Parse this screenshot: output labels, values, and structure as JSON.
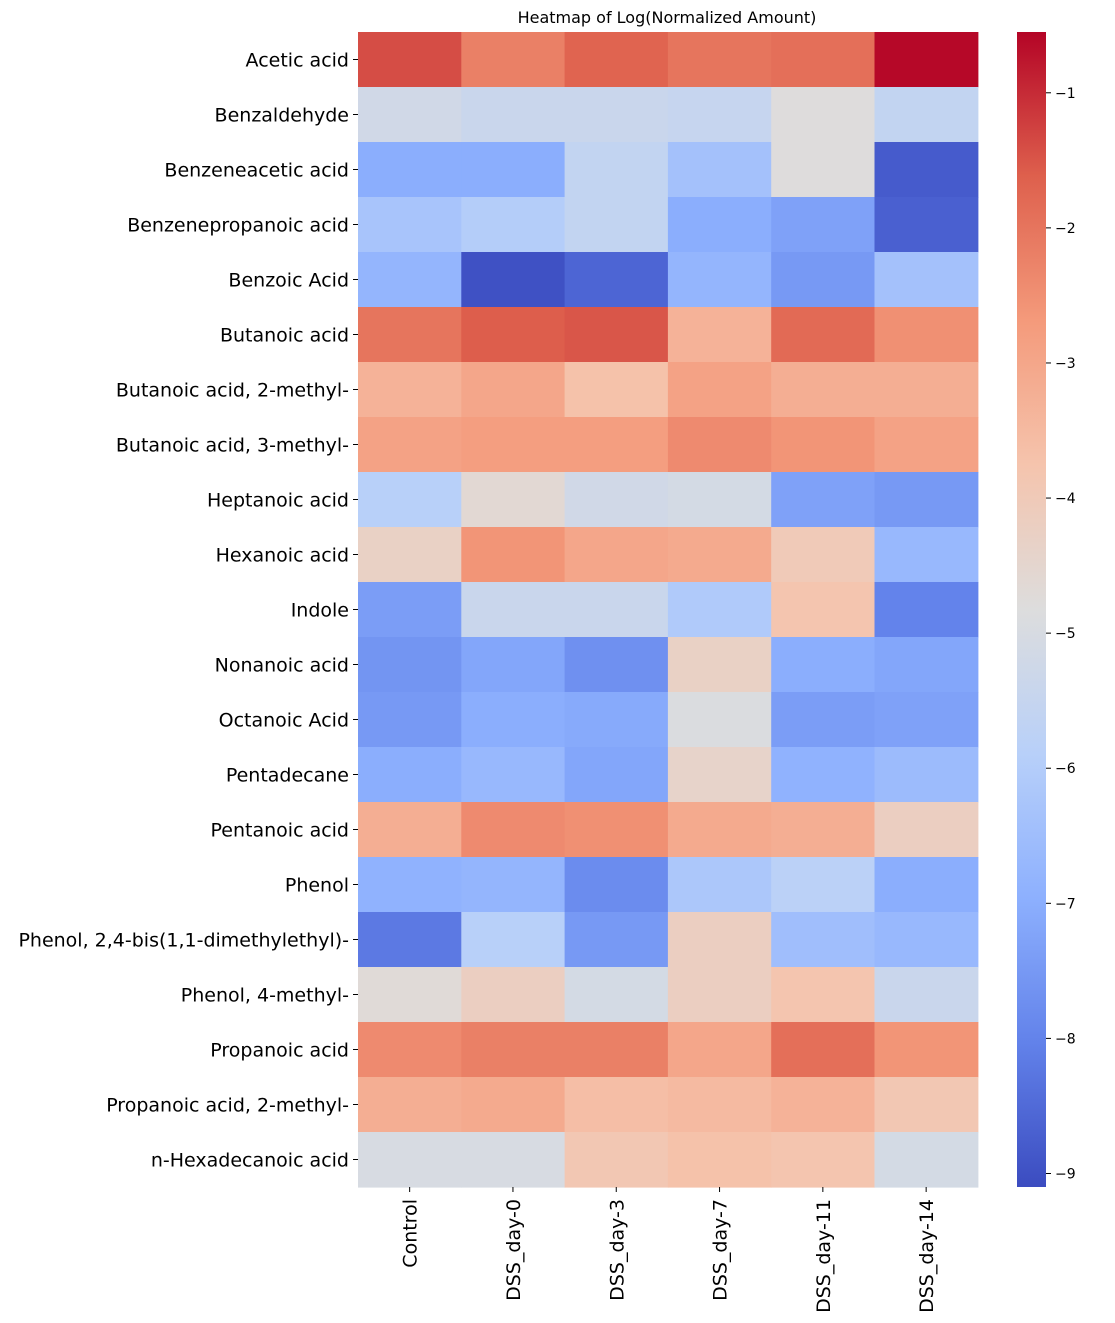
{
  "chart_data": {
    "type": "heatmap",
    "title": "Heatmap of Log(Normalized Amount)",
    "xlabel": "",
    "ylabel": "",
    "colormap": "coolwarm",
    "colormap_stops": [
      "#3b4cc0",
      "#b40426"
    ],
    "vmin": -9.1,
    "vmax": -0.55,
    "colorbar_ticks": [
      -1,
      -2,
      -3,
      -4,
      -5,
      -6,
      -7,
      -8,
      -9
    ],
    "colorbar_tick_labels": [
      "−1",
      "−2",
      "−3",
      "−4",
      "−5",
      "−6",
      "−7",
      "−8",
      "−9"
    ],
    "columns": [
      "Control",
      "DSS_day-0",
      "DSS_day-3",
      "DSS_day-7",
      "DSS_day-11",
      "DSS_day-14"
    ],
    "rows": [
      "Acetic acid",
      "Benzaldehyde",
      "Benzeneacetic acid",
      "Benzenepropanoic acid",
      "Benzoic Acid",
      "Butanoic acid",
      "Butanoic acid, 2-methyl-",
      "Butanoic acid, 3-methyl-",
      "Heptanoic acid",
      "Hexanoic acid",
      "Indole",
      "Nonanoic acid",
      "Octanoic Acid",
      "Pentadecane",
      "Pentanoic acid",
      "Phenol",
      "Phenol, 2,4-bis(1,1-dimethylethyl)-",
      "Phenol, 4-methyl-",
      "Propanoic acid",
      "Propanoic acid, 2-methyl-",
      "n-Hexadecanoic acid"
    ],
    "values": [
      [
        -1.4,
        -2.2,
        -1.7,
        -2.0,
        -1.9,
        -0.6
      ],
      [
        -5.2,
        -5.4,
        -5.4,
        -5.5,
        -4.8,
        -5.6
      ],
      [
        -7.0,
        -7.0,
        -5.6,
        -6.4,
        -4.8,
        -8.8
      ],
      [
        -6.3,
        -6.0,
        -5.6,
        -7.0,
        -7.3,
        -8.7
      ],
      [
        -6.8,
        -9.0,
        -8.6,
        -6.8,
        -7.5,
        -6.4
      ],
      [
        -2.0,
        -1.6,
        -1.5,
        -3.3,
        -1.8,
        -2.5
      ],
      [
        -3.3,
        -3.0,
        -3.7,
        -2.9,
        -3.2,
        -3.2
      ],
      [
        -2.9,
        -2.8,
        -2.8,
        -2.4,
        -2.6,
        -2.9
      ],
      [
        -5.9,
        -4.6,
        -5.2,
        -5.1,
        -7.3,
        -7.5
      ],
      [
        -4.3,
        -2.6,
        -3.0,
        -3.1,
        -4.0,
        -6.7
      ],
      [
        -7.4,
        -5.4,
        -5.4,
        -6.1,
        -3.8,
        -8.0
      ],
      [
        -7.6,
        -7.2,
        -7.7,
        -4.3,
        -7.0,
        -7.2
      ],
      [
        -7.5,
        -7.0,
        -7.1,
        -4.9,
        -7.4,
        -7.3
      ],
      [
        -7.0,
        -6.7,
        -7.2,
        -4.4,
        -6.9,
        -6.6
      ],
      [
        -3.2,
        -2.4,
        -2.5,
        -3.1,
        -3.2,
        -4.2
      ],
      [
        -6.9,
        -6.8,
        -7.8,
        -6.2,
        -5.8,
        -7.0
      ],
      [
        -8.2,
        -5.9,
        -7.5,
        -4.2,
        -6.5,
        -6.7
      ],
      [
        -4.7,
        -4.2,
        -5.1,
        -4.2,
        -3.8,
        -5.4
      ],
      [
        -2.4,
        -2.2,
        -2.2,
        -3.0,
        -1.9,
        -2.6
      ],
      [
        -3.2,
        -3.1,
        -3.6,
        -3.5,
        -3.3,
        -3.9
      ],
      [
        -5.0,
        -5.0,
        -3.9,
        -3.7,
        -3.8,
        -5.1
      ]
    ]
  }
}
